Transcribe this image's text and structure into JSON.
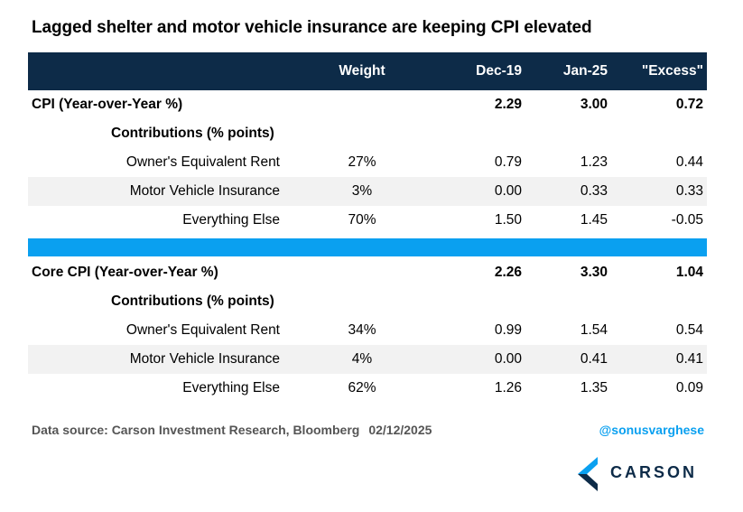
{
  "title": "Lagged shelter and motor vehicle insurance are keeping CPI elevated",
  "chart_data": {
    "type": "table",
    "columns": [
      "",
      "Weight",
      "Dec-19",
      "Jan-25",
      "\"Excess\""
    ],
    "sections": [
      {
        "label": "CPI (Year-over-Year %)",
        "dec19": "2.29",
        "jan25": "3.00",
        "excess": "0.72",
        "sub_label": "Contributions (% points)",
        "rows": [
          {
            "label": "Owner's Equivalent Rent",
            "weight": "27%",
            "dec19": "0.79",
            "jan25": "1.23",
            "excess": "0.44"
          },
          {
            "label": "Motor Vehicle Insurance",
            "weight": "3%",
            "dec19": "0.00",
            "jan25": "0.33",
            "excess": "0.33"
          },
          {
            "label": "Everything Else",
            "weight": "70%",
            "dec19": "1.50",
            "jan25": "1.45",
            "excess": "-0.05"
          }
        ]
      },
      {
        "label": "Core CPI (Year-over-Year %)",
        "dec19": "2.26",
        "jan25": "3.30",
        "excess": "1.04",
        "sub_label": "Contributions (% points)",
        "rows": [
          {
            "label": "Owner's Equivalent Rent",
            "weight": "34%",
            "dec19": "0.99",
            "jan25": "1.54",
            "excess": "0.54"
          },
          {
            "label": "Motor Vehicle Insurance",
            "weight": "4%",
            "dec19": "0.00",
            "jan25": "0.41",
            "excess": "0.41"
          },
          {
            "label": "Everything Else",
            "weight": "62%",
            "dec19": "1.26",
            "jan25": "1.35",
            "excess": "0.09"
          }
        ]
      }
    ]
  },
  "footer": {
    "source": "Data source: Carson Investment Research, Bloomberg",
    "date": "02/12/2025",
    "handle": "@sonusvarghese"
  },
  "logo": {
    "text": "CARSON"
  },
  "colors": {
    "header_bg": "#0d2b48",
    "separator": "#0aa0f0",
    "handle": "#0aa0f0",
    "shade": "#f2f2f2"
  }
}
